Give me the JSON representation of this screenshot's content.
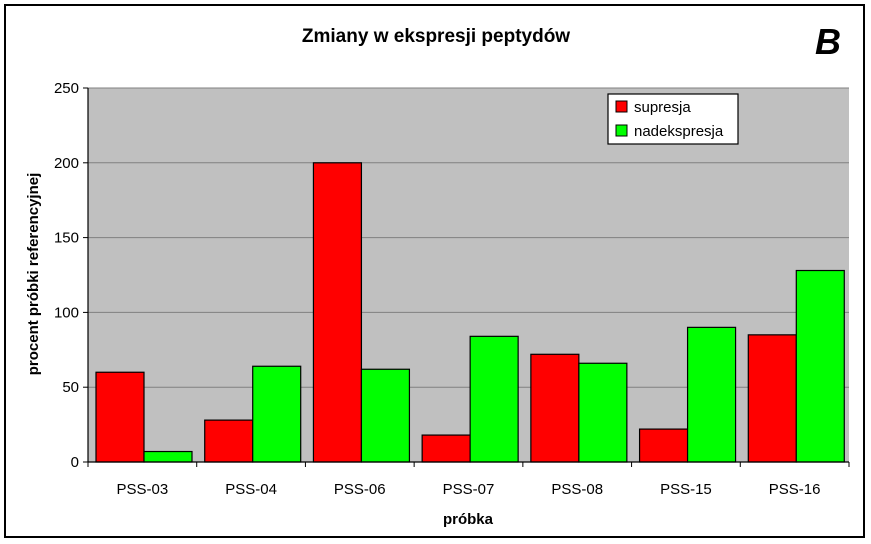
{
  "panel_letter": "B",
  "chart_data": {
    "type": "bar",
    "title": "Zmiany w ekspresji peptydów",
    "xlabel": "próbka",
    "ylabel": "procent próbki referencyjnej",
    "ylim": [
      0,
      250
    ],
    "yticks": [
      0,
      50,
      100,
      150,
      200,
      250
    ],
    "grid": true,
    "legend_position": "top-right",
    "categories": [
      "PSS-03",
      "PSS-04",
      "PSS-06",
      "PSS-07",
      "PSS-08",
      "PSS-15",
      "PSS-16"
    ],
    "series": [
      {
        "name": "supresja",
        "color": "#ff0000",
        "values": [
          60,
          28,
          200,
          18,
          72,
          22,
          85
        ]
      },
      {
        "name": "nadekspresja",
        "color": "#00ff00",
        "values": [
          7,
          64,
          62,
          84,
          66,
          90,
          128
        ]
      }
    ],
    "plot_background": "#c0c0c0"
  }
}
